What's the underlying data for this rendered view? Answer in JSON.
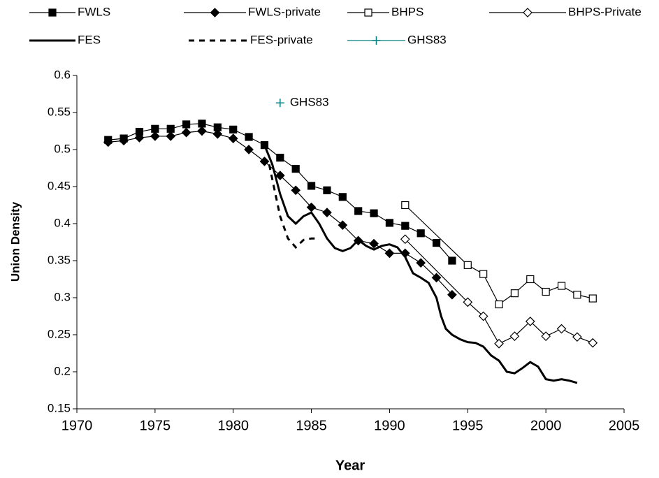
{
  "chart_data": {
    "type": "line",
    "x_label": "Year",
    "y_label": "Union Density",
    "xlim": [
      1970,
      2005
    ],
    "xticks": [
      1970,
      1975,
      1980,
      1985,
      1990,
      1995,
      2000,
      2005
    ],
    "ylim": [
      0.15,
      0.6
    ],
    "yticks": [
      0.15,
      0.2,
      0.25,
      0.3,
      0.35,
      0.4,
      0.45,
      0.5,
      0.55,
      0.6
    ],
    "grid": false,
    "legend": "top",
    "series": [
      {
        "name": "FWLS",
        "color": "#000000",
        "marker": "square-filled",
        "line": "solid",
        "x": [
          1972,
          1973,
          1974,
          1975,
          1976,
          1977,
          1978,
          1979,
          1980,
          1981,
          1982,
          1983,
          1984,
          1985,
          1986,
          1987,
          1988,
          1989,
          1990,
          1991,
          1992,
          1993,
          1994
        ],
        "values": [
          0.513,
          0.515,
          0.524,
          0.528,
          0.528,
          0.534,
          0.535,
          0.53,
          0.527,
          0.517,
          0.506,
          0.489,
          0.474,
          0.451,
          0.445,
          0.436,
          0.417,
          0.414,
          0.401,
          0.397,
          0.387,
          0.374,
          0.35
        ]
      },
      {
        "name": "FWLS-private",
        "color": "#000000",
        "marker": "diamond-filled",
        "line": "solid",
        "x": [
          1972,
          1973,
          1974,
          1975,
          1976,
          1977,
          1978,
          1979,
          1980,
          1981,
          1982,
          1983,
          1984,
          1985,
          1986,
          1987,
          1988,
          1989,
          1990,
          1991,
          1992,
          1993,
          1994
        ],
        "values": [
          0.51,
          0.512,
          0.516,
          0.518,
          0.518,
          0.523,
          0.525,
          0.521,
          0.515,
          0.5,
          0.484,
          0.465,
          0.445,
          0.422,
          0.415,
          0.398,
          0.377,
          0.373,
          0.36,
          0.36,
          0.347,
          0.327,
          0.304
        ]
      },
      {
        "name": "BHPS",
        "color": "#000000",
        "marker": "square-open",
        "line": "solid",
        "x": [
          1991,
          1995,
          1996,
          1997,
          1998,
          1999,
          2000,
          2001,
          2002,
          2003
        ],
        "values": [
          0.425,
          0.344,
          0.332,
          0.291,
          0.306,
          0.325,
          0.308,
          0.316,
          0.304,
          0.299
        ]
      },
      {
        "name": "BHPS-Private",
        "color": "#000000",
        "marker": "diamond-open",
        "line": "solid",
        "x": [
          1991,
          1995,
          1996,
          1997,
          1998,
          1999,
          2000,
          2001,
          2002,
          2003
        ],
        "values": [
          0.379,
          0.294,
          0.275,
          0.238,
          0.248,
          0.268,
          0.248,
          0.258,
          0.247,
          0.239
        ]
      },
      {
        "name": "FES",
        "color": "#000000",
        "marker": "none",
        "line": "thick",
        "x": [
          1982,
          1982.5,
          1983,
          1983.5,
          1984,
          1984.5,
          1985,
          1985.5,
          1986,
          1986.5,
          1987,
          1987.5,
          1988,
          1988.5,
          1989,
          1989.5,
          1990,
          1990.5,
          1991,
          1991.5,
          1992,
          1992.5,
          1993,
          1993.3,
          1993.6,
          1994,
          1994.5,
          1995,
          1995.5,
          1996,
          1996.5,
          1997,
          1997.5,
          1998,
          1998.5,
          1999,
          1999.5,
          2000,
          2000.5,
          2001,
          2001.5,
          2002
        ],
        "values": [
          0.506,
          0.48,
          0.44,
          0.41,
          0.4,
          0.41,
          0.415,
          0.4,
          0.38,
          0.367,
          0.363,
          0.367,
          0.378,
          0.37,
          0.365,
          0.37,
          0.372,
          0.368,
          0.355,
          0.333,
          0.327,
          0.32,
          0.3,
          0.275,
          0.258,
          0.25,
          0.244,
          0.24,
          0.239,
          0.234,
          0.222,
          0.215,
          0.2,
          0.198,
          0.205,
          0.213,
          0.207,
          0.19,
          0.188,
          0.19,
          0.188,
          0.185
        ]
      },
      {
        "name": "FES-private",
        "color": "#000000",
        "marker": "none",
        "line": "dashed",
        "x": [
          1982.3,
          1982.7,
          1983,
          1983.5,
          1984,
          1984.5,
          1985,
          1985.5
        ],
        "values": [
          0.48,
          0.44,
          0.41,
          0.38,
          0.368,
          0.378,
          0.38,
          0.38
        ]
      },
      {
        "name": "GHS83",
        "color": "#008080",
        "marker": "plus",
        "line": "none",
        "x": [
          1983
        ],
        "values": [
          0.563
        ]
      }
    ]
  }
}
